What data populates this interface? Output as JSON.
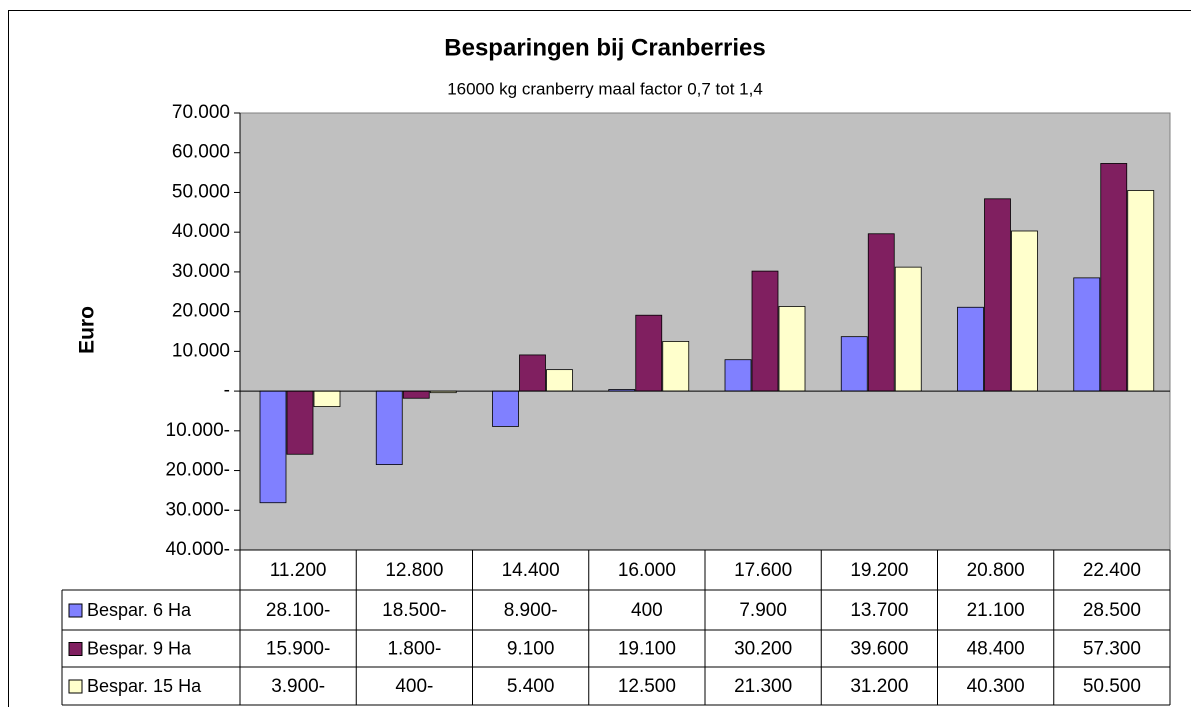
{
  "chart_data": {
    "type": "bar",
    "title": "Besparingen bij Cranberries",
    "subtitle": "16000 kg cranberry maal factor 0,7 tot 1,4",
    "y_label": "Euro",
    "categories": [
      "11.200",
      "12.800",
      "14.400",
      "16.000",
      "17.600",
      "19.200",
      "20.800",
      "22.400"
    ],
    "series": [
      {
        "name": "Bespar. 6 Ha",
        "color": "#8080ff",
        "values": [
          -28100,
          -18500,
          -8900,
          400,
          7900,
          13700,
          21100,
          28500
        ],
        "value_labels": [
          "28.100-",
          "18.500-",
          "8.900-",
          "400",
          "7.900",
          "13.700",
          "21.100",
          "28.500"
        ]
      },
      {
        "name": "Bespar. 9 Ha",
        "color": "#801f60",
        "values": [
          -15900,
          -1800,
          9100,
          19100,
          30200,
          39600,
          48400,
          57300
        ],
        "value_labels": [
          "15.900-",
          "1.800-",
          "9.100",
          "19.100",
          "30.200",
          "39.600",
          "48.400",
          "57.300"
        ]
      },
      {
        "name": "Bespar. 15 Ha",
        "color": "#ffffcc",
        "values": [
          -3900,
          -400,
          5400,
          12500,
          21300,
          31200,
          40300,
          50500
        ],
        "value_labels": [
          "3.900-",
          "400-",
          "5.400",
          "12.500",
          "21.300",
          "31.200",
          "40.300",
          "50.500"
        ]
      }
    ],
    "ylim": [
      -40000,
      70000
    ],
    "yticks": [
      {
        "value": -40000,
        "label": "40.000-"
      },
      {
        "value": -30000,
        "label": "30.000-"
      },
      {
        "value": -20000,
        "label": "20.000-"
      },
      {
        "value": -10000,
        "label": "10.000-"
      },
      {
        "value": 0,
        "label": "-"
      },
      {
        "value": 10000,
        "label": "10.000"
      },
      {
        "value": 20000,
        "label": "20.000"
      },
      {
        "value": 30000,
        "label": "30.000"
      },
      {
        "value": 40000,
        "label": "40.000"
      },
      {
        "value": 50000,
        "label": "50.000"
      },
      {
        "value": 60000,
        "label": "60.000"
      },
      {
        "value": 70000,
        "label": "70.000"
      }
    ],
    "plot_background": "#c0c0c0",
    "grid": false
  }
}
